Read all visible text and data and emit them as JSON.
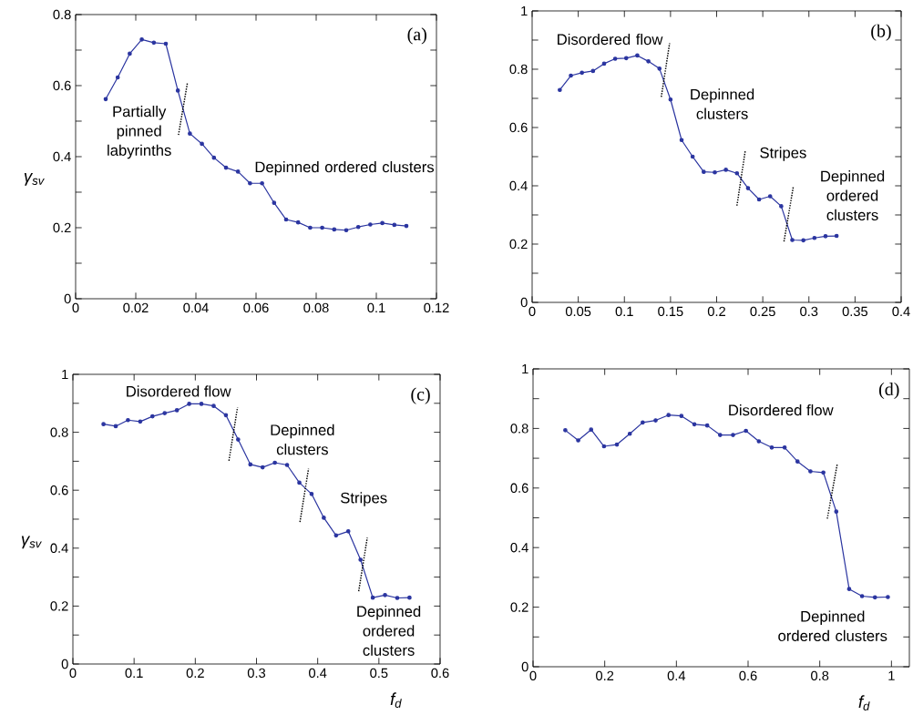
{
  "chart_data": [
    {
      "type": "line",
      "ylabel": "γ$_{sv}$",
      "xlim": [
        0,
        0.12
      ],
      "ylim": [
        0,
        0.8
      ],
      "xticks": [
        0,
        0.02,
        0.04,
        0.06,
        0.08,
        0.1,
        0.12
      ],
      "yticks": [
        0,
        {
          "value": 0.1,
          "label": null
        },
        0.2,
        {
          "value": 0.3,
          "label": null
        },
        0.4,
        {
          "value": 0.5,
          "label": null
        },
        0.6,
        {
          "value": 0.7,
          "label": null
        },
        0.8
      ],
      "series": [
        {
          "color": "#2b35a0",
          "marker": "circle",
          "line_style": "solid",
          "x": [
            0.01,
            0.014,
            0.018,
            0.022,
            0.026,
            0.03,
            0.034,
            0.038,
            0.042,
            0.046,
            0.05,
            0.054,
            0.058,
            0.062,
            0.066,
            0.07,
            0.074,
            0.078,
            0.082,
            0.086,
            0.09,
            0.094,
            0.098,
            0.102,
            0.106,
            0.11
          ],
          "values": [
            0.562,
            0.623,
            0.69,
            0.73,
            0.721,
            0.718,
            0.586,
            0.465,
            0.436,
            0.397,
            0.369,
            0.358,
            0.325,
            0.325,
            0.27,
            0.223,
            0.215,
            0.2,
            0.2,
            0.195,
            0.193,
            0.202,
            0.209,
            0.213,
            0.208,
            0.205
          ]
        },
        {
          "color": "#000000",
          "marker": "none",
          "line_style": "dotted",
          "x": [
            0.0342,
            0.0372
          ],
          "values": [
            0.461,
            0.609
          ]
        }
      ],
      "annotations": [
        "(a)",
        "Partially pinned labyrinths",
        "Depinned ordered clusters"
      ]
    },
    {
      "type": "line",
      "xlim": [
        0,
        0.4
      ],
      "ylim": [
        0,
        1
      ],
      "xticks": [
        0,
        0.05,
        0.1,
        0.15,
        0.2,
        0.25,
        0.3,
        0.35,
        0.4
      ],
      "yticks": [
        0,
        {
          "value": 0.1,
          "label": null
        },
        0.2,
        {
          "value": 0.3,
          "label": null
        },
        0.4,
        {
          "value": 0.5,
          "label": null
        },
        0.6,
        {
          "value": 0.7,
          "label": null
        },
        0.8,
        {
          "value": 0.9,
          "label": null
        },
        1
      ],
      "series": [
        {
          "color": "#2b35a0",
          "marker": "circle",
          "line_style": "solid",
          "x": [
            0.03,
            0.042,
            0.054,
            0.066,
            0.078,
            0.09,
            0.102,
            0.114,
            0.126,
            0.138,
            0.15,
            0.162,
            0.174,
            0.186,
            0.198,
            0.21,
            0.222,
            0.234,
            0.246,
            0.258,
            0.27,
            0.282,
            0.294,
            0.306,
            0.318,
            0.33
          ],
          "values": [
            0.729,
            0.778,
            0.788,
            0.794,
            0.819,
            0.836,
            0.838,
            0.847,
            0.827,
            0.802,
            0.696,
            0.557,
            0.5,
            0.448,
            0.446,
            0.455,
            0.443,
            0.392,
            0.353,
            0.364,
            0.33,
            0.214,
            0.213,
            0.221,
            0.227,
            0.228
          ]
        },
        {
          "color": "#000000",
          "marker": "none",
          "line_style": "dotted",
          "x": [
            0.14,
            0.149
          ],
          "values": [
            0.705,
            0.889
          ]
        },
        {
          "color": "#000000",
          "marker": "none",
          "line_style": "dotted",
          "x": [
            0.222,
            0.231
          ],
          "values": [
            0.332,
            0.52
          ]
        },
        {
          "color": "#000000",
          "marker": "none",
          "line_style": "dotted",
          "x": [
            0.273,
            0.283
          ],
          "values": [
            0.209,
            0.395
          ]
        }
      ],
      "annotations": [
        "(b)",
        "Disordered flow",
        "Depinned clusters",
        "Stripes",
        "Depinned ordered clusters"
      ]
    },
    {
      "type": "line",
      "ylabel": "γ$_{sv}$",
      "xlabel": "f$_{d}$",
      "xlim": [
        0,
        0.6
      ],
      "ylim": [
        0,
        1
      ],
      "xticks": [
        0,
        0.1,
        0.2,
        0.3,
        0.4,
        0.5,
        0.6
      ],
      "yticks": [
        0,
        {
          "value": 0.1,
          "label": null
        },
        0.2,
        {
          "value": 0.3,
          "label": null
        },
        0.4,
        {
          "value": 0.5,
          "label": null
        },
        0.6,
        {
          "value": 0.7,
          "label": null
        },
        0.8,
        {
          "value": 0.9,
          "label": null
        },
        1
      ],
      "series": [
        {
          "color": "#2b35a0",
          "marker": "circle",
          "line_style": "solid",
          "x": [
            0.05,
            0.07,
            0.09,
            0.11,
            0.13,
            0.15,
            0.17,
            0.19,
            0.21,
            0.23,
            0.25,
            0.27,
            0.29,
            0.31,
            0.33,
            0.35,
            0.37,
            0.39,
            0.41,
            0.43,
            0.45,
            0.47,
            0.49,
            0.51,
            0.53,
            0.55
          ],
          "values": [
            0.828,
            0.821,
            0.842,
            0.837,
            0.855,
            0.866,
            0.876,
            0.898,
            0.898,
            0.891,
            0.859,
            0.775,
            0.689,
            0.679,
            0.695,
            0.687,
            0.626,
            0.587,
            0.505,
            0.444,
            0.458,
            0.36,
            0.229,
            0.238,
            0.228,
            0.229
          ]
        },
        {
          "color": "#000000",
          "marker": "none",
          "line_style": "dotted",
          "x": [
            0.255,
            0.269
          ],
          "values": [
            0.702,
            0.886
          ]
        },
        {
          "color": "#000000",
          "marker": "none",
          "line_style": "dotted",
          "x": [
            0.371,
            0.385
          ],
          "values": [
            0.49,
            0.674
          ]
        },
        {
          "color": "#000000",
          "marker": "none",
          "line_style": "dotted",
          "x": [
            0.467,
            0.481
          ],
          "values": [
            0.251,
            0.436
          ]
        }
      ],
      "annotations": [
        "(c)",
        "Disordered flow",
        "Depinned clusters",
        "Stripes",
        "Depinned ordered clusters"
      ]
    },
    {
      "type": "line",
      "xlabel": "f$_{d}$",
      "xlim": [
        0,
        1.05
      ],
      "ylim": [
        0,
        1
      ],
      "xticks": [
        0,
        0.2,
        0.4,
        0.6,
        0.8,
        1
      ],
      "yticks": [
        0,
        {
          "value": 0.1,
          "label": null
        },
        0.2,
        {
          "value": 0.3,
          "label": null
        },
        0.4,
        {
          "value": 0.5,
          "label": null
        },
        0.6,
        {
          "value": 0.7,
          "label": null
        },
        0.8,
        {
          "value": 0.9,
          "label": null
        },
        1
      ],
      "series": [
        {
          "color": "#2b35a0",
          "marker": "circle",
          "line_style": "solid",
          "x": [
            0.09,
            0.126,
            0.162,
            0.198,
            0.234,
            0.27,
            0.306,
            0.342,
            0.378,
            0.414,
            0.45,
            0.486,
            0.522,
            0.558,
            0.594,
            0.63,
            0.666,
            0.702,
            0.738,
            0.774,
            0.81,
            0.846,
            0.882,
            0.918,
            0.954,
            0.99
          ],
          "values": [
            0.794,
            0.76,
            0.796,
            0.74,
            0.746,
            0.782,
            0.82,
            0.827,
            0.845,
            0.842,
            0.814,
            0.81,
            0.778,
            0.778,
            0.792,
            0.757,
            0.736,
            0.736,
            0.689,
            0.656,
            0.652,
            0.521,
            0.261,
            0.237,
            0.233,
            0.234
          ]
        },
        {
          "color": "#000000",
          "marker": "none",
          "line_style": "dotted",
          "x": [
            0.821,
            0.849
          ],
          "values": [
            0.497,
            0.682
          ]
        }
      ],
      "annotations": [
        "(d)",
        "Disordered flow",
        "Depinned ordered clusters"
      ]
    }
  ]
}
